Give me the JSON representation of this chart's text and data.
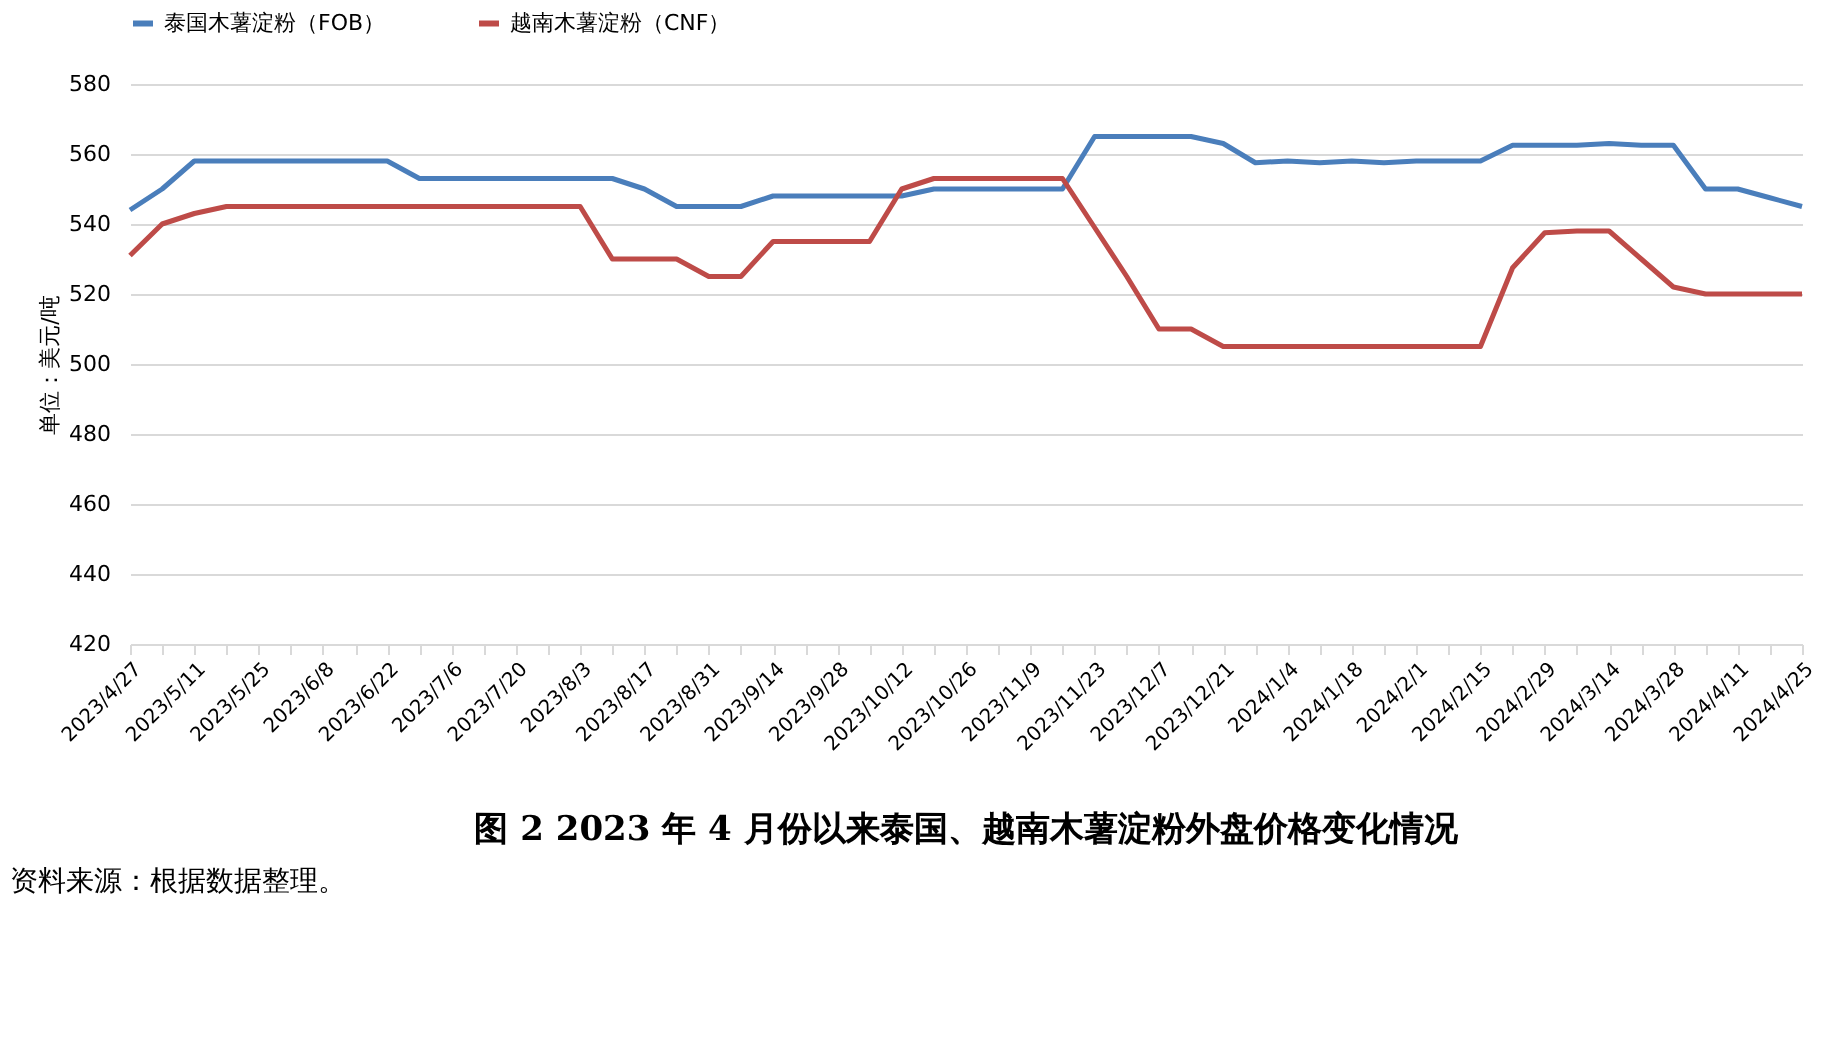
{
  "chart_data": {
    "type": "line",
    "title": "图 2   2023 年 4 月份以来泰国、越南木薯淀粉外盘价格变化情况",
    "ylabel": "单位：美元/吨",
    "annotations": [
      "资料来源：根据数据整理。"
    ],
    "categories": [
      "2023/4/27",
      null,
      "2023/5/11",
      null,
      "2023/5/25",
      null,
      "2023/6/8",
      null,
      "2023/6/22",
      null,
      "2023/7/6",
      null,
      "2023/7/20",
      null,
      "2023/8/3",
      null,
      "2023/8/17",
      null,
      "2023/8/31",
      null,
      "2023/9/14",
      null,
      "2023/9/28",
      null,
      "2023/10/12",
      null,
      "2023/10/26",
      null,
      "2023/11/9",
      null,
      "2023/11/23",
      null,
      "2023/12/7",
      null,
      "2023/12/21",
      null,
      "2024/1/4",
      null,
      "2024/1/18",
      null,
      "2024/2/1",
      null,
      "2024/2/15",
      null,
      "2024/2/29",
      null,
      "2024/3/14",
      null,
      "2024/3/28",
      null,
      "2024/4/11",
      null,
      "2024/4/25"
    ],
    "series": [
      {
        "name": "泰国木薯淀粉（FOB）",
        "color": "#4a7ebb",
        "values": [
          544,
          550,
          558,
          558,
          558,
          558,
          558,
          558,
          558,
          553,
          553,
          553,
          553,
          553,
          553,
          553,
          550,
          545,
          545,
          545,
          548,
          548,
          548,
          548,
          548,
          550,
          550,
          550,
          550,
          550,
          565,
          565,
          565,
          565,
          563,
          557.5,
          558,
          557.5,
          558,
          557.5,
          558,
          558,
          558,
          562.5,
          562.5,
          562.5,
          563,
          562.5,
          562.5,
          550,
          550,
          547.5,
          545
        ]
      },
      {
        "name": "越南木薯淀粉（CNF）",
        "color": "#be4b48",
        "values": [
          531,
          540,
          543,
          545,
          545,
          545,
          545,
          545,
          545,
          545,
          545,
          545,
          545,
          545,
          545,
          530,
          530,
          530,
          525,
          525,
          535,
          535,
          535,
          535,
          550,
          553,
          553,
          553,
          553,
          553,
          539,
          525,
          510,
          510,
          505,
          505,
          505,
          505,
          505,
          505,
          505,
          505,
          505,
          527.5,
          537.5,
          538,
          538,
          530,
          522,
          520,
          520,
          520,
          520
        ]
      }
    ],
    "ylim": [
      420,
      580
    ],
    "yticks": [
      420,
      440,
      460,
      480,
      500,
      520,
      540,
      560,
      580
    ],
    "grid": "y",
    "legend": "top",
    "marker": "none",
    "line_style": "solid"
  }
}
